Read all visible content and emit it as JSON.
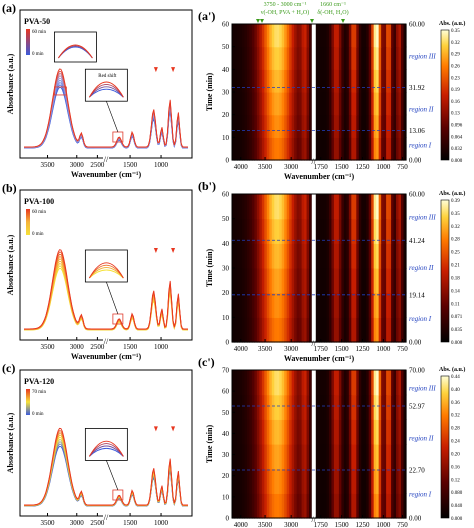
{
  "chart_data": [
    {
      "type": "line",
      "panel_label": "(a)",
      "sample": "PVA-50",
      "xlabel": "Wavenumber (cm⁻¹)",
      "ylabel": "Absorbance (a.u.)",
      "x_ticks": [
        "3500",
        "3000",
        "2500",
        "1500",
        "1000"
      ],
      "x_reversed": true,
      "x_break": true,
      "legend_top": "60 min",
      "legend_bottom": "0 min",
      "annotation": "Red shift",
      "inset_count": 2
    },
    {
      "type": "line",
      "panel_label": "(b)",
      "sample": "PVA-100",
      "xlabel": "Wavenumber (cm⁻¹)",
      "ylabel": "Absorbance (a.u.)",
      "x_ticks": [
        "3500",
        "3000",
        "2500",
        "1500",
        "1000"
      ],
      "x_reversed": true,
      "x_break": true,
      "legend_top": "60 min",
      "legend_bottom": "0 min",
      "inset_count": 1
    },
    {
      "type": "line",
      "panel_label": "(c)",
      "sample": "PVA-120",
      "xlabel": "Wavenumber (cm⁻¹)",
      "ylabel": "Absorbance (a.u.)",
      "x_ticks": [
        "3500",
        "3000",
        "2500",
        "1500",
        "1000"
      ],
      "x_reversed": true,
      "x_break": true,
      "legend_top": "70 min",
      "legend_bottom": "0 min",
      "inset_count": 1
    },
    {
      "type": "heatmap",
      "panel_label": "(a')",
      "xlabel": "Wavenumber (cm⁻¹)",
      "ylabel": "Time (min)",
      "x_ticks_left": [
        "4000",
        "3500",
        "3000"
      ],
      "x_ticks_right": [
        "1750",
        "1500",
        "1250",
        "1000",
        "750"
      ],
      "ylim": [
        0,
        60
      ],
      "y_ticks": [
        "0",
        "10",
        "20",
        "30",
        "40",
        "50",
        "60"
      ],
      "colorbar_title": "Abs. (a.u.)",
      "colorbar_ticks": [
        "0.35",
        "0.32",
        "0.29",
        "0.26",
        "0.23",
        "0.19",
        "0.16",
        "0.13",
        "0.096",
        "0.064",
        "0.032",
        "0.000"
      ],
      "region_lines": [
        0.0,
        13.06,
        31.92,
        60.0
      ],
      "region_line_labels": [
        "0.00",
        "13.06",
        "31.92",
        "60.00"
      ],
      "regions": [
        "region I",
        "region II",
        "region III"
      ],
      "top_annotations": [
        {
          "range": "3750 - 3000 cm⁻¹",
          "assign": "ν(-OH, PVA + H₂O)"
        },
        {
          "range": "1660 cm⁻¹",
          "assign": "δ(-OH, H₂O)"
        }
      ]
    },
    {
      "type": "heatmap",
      "panel_label": "(b')",
      "xlabel": "Wavenumber (cm⁻¹)",
      "ylabel": "Time (min)",
      "x_ticks_left": [
        "4000",
        "3500",
        "3000"
      ],
      "x_ticks_right": [
        "1750",
        "1500",
        "1250",
        "1000",
        "750"
      ],
      "ylim": [
        0,
        60
      ],
      "y_ticks": [
        "0",
        "10",
        "20",
        "30",
        "40",
        "50",
        "60"
      ],
      "colorbar_title": "Abs. (a.u.)",
      "colorbar_ticks": [
        "0.39",
        "0.35",
        "0.32",
        "0.28",
        "0.25",
        "0.21",
        "0.18",
        "0.14",
        "0.11",
        "0.071",
        "0.035",
        "0.000"
      ],
      "region_lines": [
        0.0,
        19.14,
        41.24,
        60.0
      ],
      "region_line_labels": [
        "0.00",
        "19.14",
        "41.24",
        "60.00"
      ],
      "regions": [
        "region I",
        "region II",
        "region III"
      ]
    },
    {
      "type": "heatmap",
      "panel_label": "(c')",
      "xlabel": "Wavenumber (cm⁻¹)",
      "ylabel": "Time (min)",
      "x_ticks_left": [
        "4000",
        "3500",
        "3000"
      ],
      "x_ticks_right": [
        "1750",
        "1500",
        "1250",
        "1000",
        "750"
      ],
      "ylim": [
        0,
        70
      ],
      "y_ticks": [
        "0",
        "10",
        "20",
        "30",
        "40",
        "50",
        "60",
        "70"
      ],
      "colorbar_title": "Abs. (a.u.)",
      "colorbar_ticks": [
        "0.44",
        "0.40",
        "0.36",
        "0.32",
        "0.28",
        "0.24",
        "0.20",
        "0.16",
        "0.12",
        "0.080",
        "0.040",
        "0.000"
      ],
      "region_lines": [
        0.0,
        22.7,
        52.97,
        70.0
      ],
      "region_line_labels": [
        "0.00",
        "22.70",
        "52.97",
        "70.00"
      ],
      "regions": [
        "region I",
        "region II",
        "region III"
      ]
    }
  ],
  "colors": {
    "spectrum_early": "#3b5bdb",
    "spectrum_mid": "#f5e23a",
    "spectrum_late": "#e8361f",
    "region_line": "#1f3fbf",
    "annotation_green": "#3a9a1a",
    "inset_box": "#e03c2e"
  }
}
